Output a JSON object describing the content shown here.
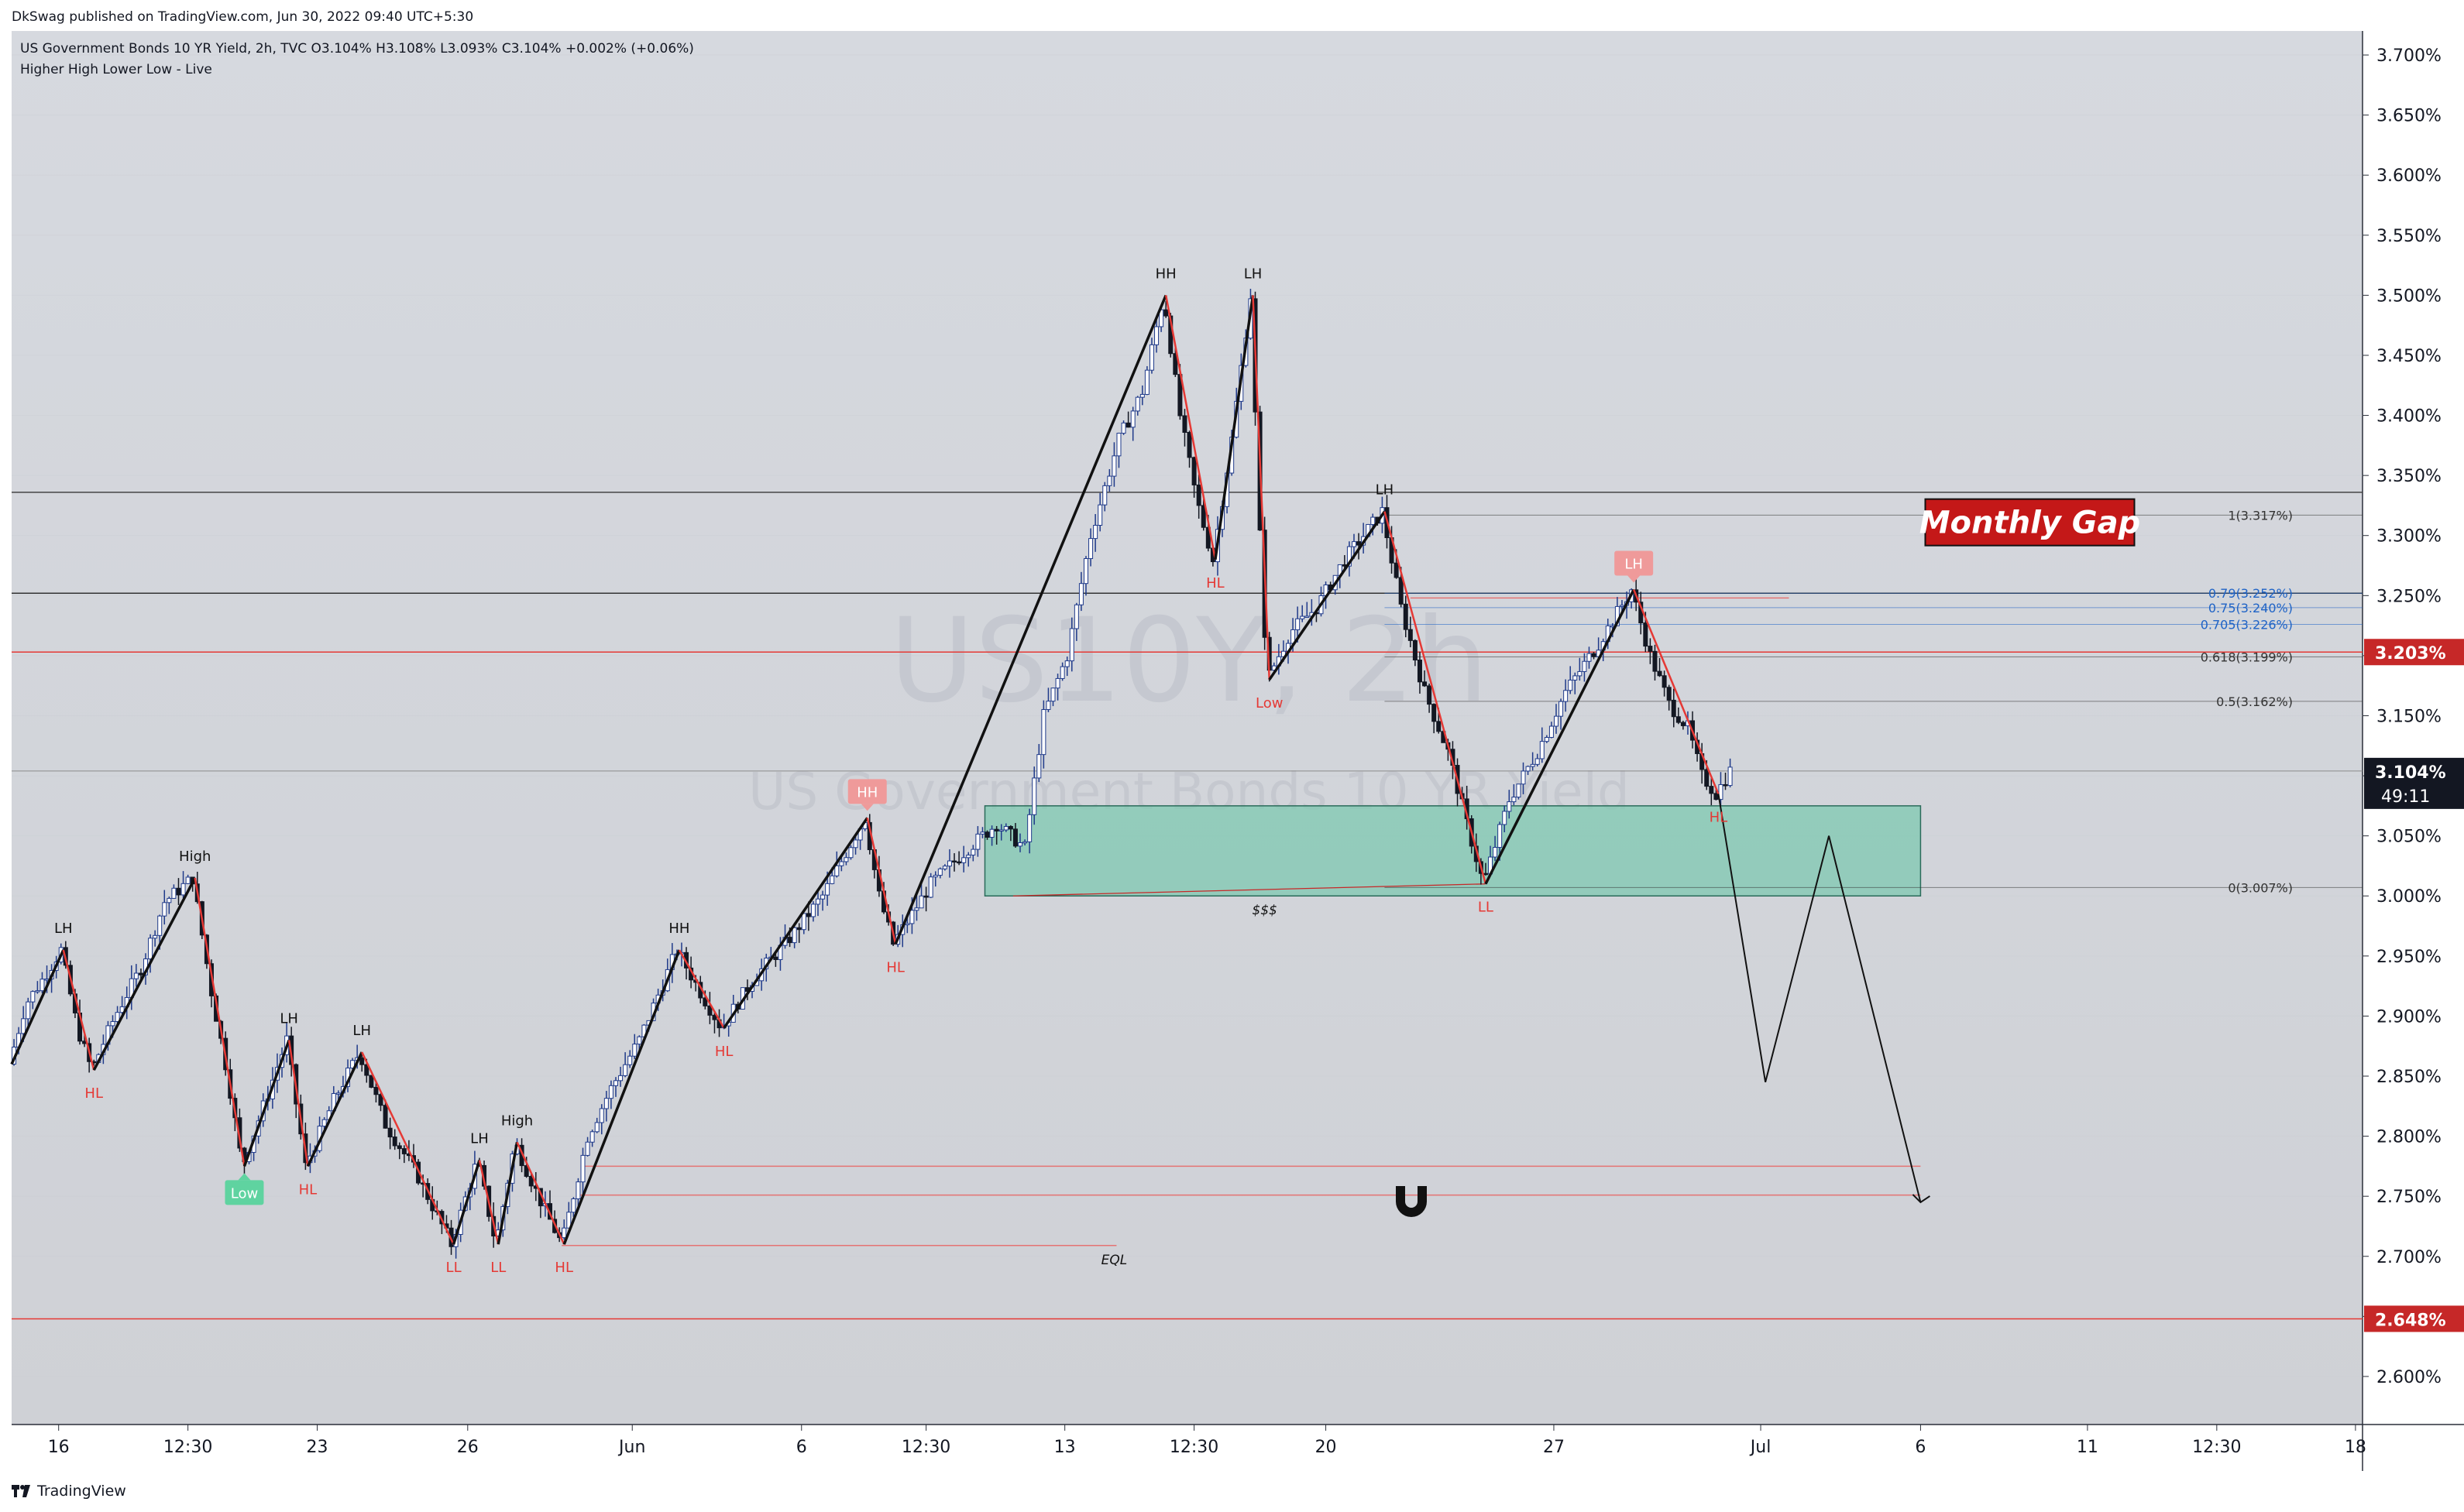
{
  "header": {
    "publisher": "DkSwag published on TradingView.com, Jun 30, 2022 09:40 UTC+5:30",
    "symbol_line": "US Government Bonds 10 YR Yield, 2h, TVC  O3.104%  H3.108%  L3.093%  C3.104%  +0.002% (+0.06%)",
    "indicator": "Higher High Lower Low - Live"
  },
  "watermark": {
    "symbol": "US10Y, 2h",
    "name": "US Government Bonds 10 YR Yield"
  },
  "footer": {
    "brand": "TradingView"
  },
  "chart_data": {
    "type": "candlestick",
    "title": "US Government Bonds 10 YR Yield, 2h, TVC",
    "ylim": [
      2.56,
      3.72
    ],
    "price_format": "%",
    "y_ticks": [
      2.6,
      2.65,
      2.7,
      2.75,
      2.8,
      2.85,
      2.9,
      2.95,
      3.0,
      3.05,
      3.1,
      3.15,
      3.2,
      3.25,
      3.3,
      3.35,
      3.4,
      3.45,
      3.5,
      3.55,
      3.6,
      3.65,
      3.7
    ],
    "y_tick_labels": [
      "2.600%",
      "2.650%",
      "2.700%",
      "2.750%",
      "2.800%",
      "2.850%",
      "2.900%",
      "2.950%",
      "3.000%",
      "3.050%",
      "3.100%",
      "3.150%",
      "3.200%",
      "3.250%",
      "3.300%",
      "3.350%",
      "3.400%",
      "3.450%",
      "3.500%",
      "3.550%",
      "3.600%",
      "3.650%",
      "3.700%"
    ],
    "x_range": [
      0,
      100
    ],
    "x_ticks": [
      {
        "x": 2,
        "label": "16"
      },
      {
        "x": 7.5,
        "label": "12:30"
      },
      {
        "x": 13,
        "label": "23"
      },
      {
        "x": 19.4,
        "label": "26"
      },
      {
        "x": 26.4,
        "label": "Jun"
      },
      {
        "x": 33.6,
        "label": "6"
      },
      {
        "x": 38.9,
        "label": "12:30"
      },
      {
        "x": 44.8,
        "label": "13"
      },
      {
        "x": 50.3,
        "label": "12:30"
      },
      {
        "x": 55.9,
        "label": "20"
      },
      {
        "x": 65.6,
        "label": "27"
      },
      {
        "x": 74.4,
        "label": "Jul"
      },
      {
        "x": 81.2,
        "label": "6"
      },
      {
        "x": 88.3,
        "label": "11"
      },
      {
        "x": 93.8,
        "label": "12:30"
      },
      {
        "x": 99.7,
        "label": "18"
      }
    ],
    "last_price": {
      "value": 3.104,
      "label": "3.104%",
      "countdown": "49:11"
    },
    "price_badges": [
      {
        "value": 3.203,
        "label": "3.203%"
      },
      {
        "value": 2.648,
        "label": "2.648%"
      }
    ],
    "zigzag": [
      {
        "x": 0,
        "y": 2.86
      },
      {
        "x": 2.2,
        "y": 2.955
      },
      {
        "x": 3.5,
        "y": 2.855
      },
      {
        "x": 7.8,
        "y": 3.015
      },
      {
        "x": 9.9,
        "y": 2.775
      },
      {
        "x": 11.8,
        "y": 2.88
      },
      {
        "x": 12.6,
        "y": 2.775
      },
      {
        "x": 14.9,
        "y": 2.87
      },
      {
        "x": 18.8,
        "y": 2.71
      },
      {
        "x": 19.9,
        "y": 2.78
      },
      {
        "x": 20.7,
        "y": 2.71
      },
      {
        "x": 21.5,
        "y": 2.795
      },
      {
        "x": 23.5,
        "y": 2.71
      },
      {
        "x": 28.4,
        "y": 2.955
      },
      {
        "x": 30.3,
        "y": 2.89
      },
      {
        "x": 36.4,
        "y": 3.065
      },
      {
        "x": 37.6,
        "y": 2.96
      },
      {
        "x": 49.1,
        "y": 3.5
      },
      {
        "x": 51.2,
        "y": 3.28
      },
      {
        "x": 52.8,
        "y": 3.5
      },
      {
        "x": 53.5,
        "y": 3.18
      },
      {
        "x": 58.4,
        "y": 3.32
      },
      {
        "x": 62.7,
        "y": 3.01
      },
      {
        "x": 69.0,
        "y": 3.255
      },
      {
        "x": 72.6,
        "y": 3.085
      }
    ],
    "projection": [
      {
        "x": 72.6,
        "y": 3.085
      },
      {
        "x": 74.6,
        "y": 2.845
      },
      {
        "x": 77.3,
        "y": 3.05
      },
      {
        "x": 81.2,
        "y": 2.745
      }
    ],
    "swing_labels": [
      {
        "x": 2.2,
        "y": 2.955,
        "text": "LH",
        "pos": "above",
        "color": "#111111"
      },
      {
        "x": 3.5,
        "y": 2.855,
        "text": "HL",
        "pos": "below",
        "color": "#e53935"
      },
      {
        "x": 7.8,
        "y": 3.015,
        "text": "High",
        "pos": "above",
        "color": "#111111"
      },
      {
        "x": 11.8,
        "y": 2.88,
        "text": "LH",
        "pos": "above",
        "color": "#111111"
      },
      {
        "x": 12.6,
        "y": 2.775,
        "text": "HL",
        "pos": "below",
        "color": "#e53935"
      },
      {
        "x": 14.9,
        "y": 2.87,
        "text": "LH",
        "pos": "above",
        "color": "#111111"
      },
      {
        "x": 18.8,
        "y": 2.71,
        "text": "LL",
        "pos": "below",
        "color": "#e53935"
      },
      {
        "x": 19.9,
        "y": 2.78,
        "text": "LH",
        "pos": "above",
        "color": "#111111"
      },
      {
        "x": 20.7,
        "y": 2.71,
        "text": "LL",
        "pos": "below",
        "color": "#e53935"
      },
      {
        "x": 21.5,
        "y": 2.795,
        "text": "High",
        "pos": "above",
        "color": "#111111"
      },
      {
        "x": 23.5,
        "y": 2.71,
        "text": "HL",
        "pos": "below",
        "color": "#e53935"
      },
      {
        "x": 28.4,
        "y": 2.955,
        "text": "HH",
        "pos": "above",
        "color": "#111111"
      },
      {
        "x": 30.3,
        "y": 2.89,
        "text": "HL",
        "pos": "below",
        "color": "#e53935"
      },
      {
        "x": 37.6,
        "y": 2.96,
        "text": "HL",
        "pos": "below",
        "color": "#e53935"
      },
      {
        "x": 49.1,
        "y": 3.5,
        "text": "HH",
        "pos": "above",
        "color": "#111111"
      },
      {
        "x": 52.8,
        "y": 3.5,
        "text": "LH",
        "pos": "above",
        "color": "#111111"
      },
      {
        "x": 51.2,
        "y": 3.28,
        "text": "HL",
        "pos": "below",
        "color": "#e53935"
      },
      {
        "x": 53.5,
        "y": 3.18,
        "text": "Low",
        "pos": "below",
        "color": "#e53935"
      },
      {
        "x": 58.4,
        "y": 3.32,
        "text": "LH",
        "pos": "above",
        "color": "#111111"
      },
      {
        "x": 62.7,
        "y": 3.01,
        "text": "LL",
        "pos": "below",
        "color": "#e53935"
      },
      {
        "x": 72.6,
        "y": 3.085,
        "text": "HL",
        "pos": "below",
        "color": "#e53935"
      }
    ],
    "badges": [
      {
        "x": 36.4,
        "y": 3.065,
        "text": "HH",
        "bg": "#ef9a9a",
        "fg": "#ffffff",
        "pos": "above"
      },
      {
        "x": 69.0,
        "y": 3.255,
        "text": "LH",
        "bg": "#ef9a9a",
        "fg": "#ffffff",
        "pos": "above"
      },
      {
        "x": 9.9,
        "y": 2.775,
        "text": "Low",
        "bg": "#5fd3a0",
        "fg": "#ffffff",
        "pos": "below"
      }
    ],
    "horizontal_lines": [
      {
        "y": 3.336,
        "x1": 0,
        "x2": 100,
        "color": "#444444",
        "width": 1.5
      },
      {
        "y": 3.252,
        "x1": 0,
        "x2": 100,
        "color": "#333333",
        "width": 1.5
      },
      {
        "y": 3.203,
        "x1": 0,
        "x2": 100,
        "color": "#e53935",
        "width": 1.5
      },
      {
        "y": 3.104,
        "x1": 0,
        "x2": 100,
        "color": "#8a8a8a",
        "width": 1
      },
      {
        "y": 2.648,
        "x1": 0,
        "x2": 100,
        "color": "#e53935",
        "width": 1.5
      },
      {
        "y": 2.775,
        "x1": 24.2,
        "x2": 81.2,
        "color": "#e57373",
        "width": 1.5
      },
      {
        "y": 2.751,
        "x1": 24.2,
        "x2": 81.2,
        "color": "#e57373",
        "width": 1.5
      },
      {
        "y": 2.709,
        "x1": 23.4,
        "x2": 47.0,
        "color": "#e57373",
        "width": 1.5
      },
      {
        "y": 3.248,
        "x1": 59.5,
        "x2": 75.6,
        "color": "#e57373",
        "width": 1.5
      }
    ],
    "demand_zone": {
      "x1": 41.4,
      "x2": 81.2,
      "y1": 3.0,
      "y2": 3.075,
      "fill": "#7ec8b0",
      "stroke": "#2b6b5a"
    },
    "equal_level_labels": [
      {
        "x": 53.3,
        "y": 3.0,
        "text": "$$$"
      },
      {
        "x": 46.9,
        "y": 2.709,
        "text": "EQL"
      }
    ],
    "fib": {
      "x1": 58.4,
      "x2": 100,
      "levels": [
        {
          "ratio": "1",
          "value": 3.317,
          "label": "1(3.317%)",
          "color": "#333333"
        },
        {
          "ratio": "0.79",
          "value": 3.252,
          "label": "0.79(3.252%)",
          "color": "#1e63c6"
        },
        {
          "ratio": "0.75",
          "value": 3.24,
          "label": "0.75(3.240%)",
          "color": "#1e63c6"
        },
        {
          "ratio": "0.705",
          "value": 3.226,
          "label": "0.705(3.226%)",
          "color": "#1e63c6"
        },
        {
          "ratio": "0.618",
          "value": 3.199,
          "label": "0.618(3.199%)",
          "color": "#333333"
        },
        {
          "ratio": "0.5",
          "value": 3.162,
          "label": "0.5(3.162%)",
          "color": "#333333"
        },
        {
          "ratio": "0",
          "value": 3.007,
          "label": "0(3.007%)",
          "color": "#333333"
        }
      ]
    },
    "annotations": [
      {
        "x": 81.4,
        "y": 3.311,
        "text": "Monthly Gap",
        "bg": "#c41818",
        "fg": "#ffffff"
      }
    ],
    "series": [
      {
        "name": "US10Y 2h",
        "path": [
          {
            "x": 0,
            "y": 2.86
          },
          {
            "x": 0.7,
            "y": 2.91
          },
          {
            "x": 1.4,
            "y": 2.93
          },
          {
            "x": 2.2,
            "y": 2.955
          },
          {
            "x": 2.9,
            "y": 2.89
          },
          {
            "x": 3.5,
            "y": 2.855
          },
          {
            "x": 4.5,
            "y": 2.9
          },
          {
            "x": 5.6,
            "y": 2.94
          },
          {
            "x": 6.6,
            "y": 2.995
          },
          {
            "x": 7.8,
            "y": 3.015
          },
          {
            "x": 8.6,
            "y": 2.92
          },
          {
            "x": 9.3,
            "y": 2.85
          },
          {
            "x": 9.9,
            "y": 2.775
          },
          {
            "x": 10.9,
            "y": 2.83
          },
          {
            "x": 11.8,
            "y": 2.88
          },
          {
            "x": 12.6,
            "y": 2.775
          },
          {
            "x": 13.8,
            "y": 2.83
          },
          {
            "x": 14.9,
            "y": 2.87
          },
          {
            "x": 16.0,
            "y": 2.81
          },
          {
            "x": 17.3,
            "y": 2.77
          },
          {
            "x": 18.8,
            "y": 2.71
          },
          {
            "x": 19.9,
            "y": 2.78
          },
          {
            "x": 20.7,
            "y": 2.71
          },
          {
            "x": 21.5,
            "y": 2.795
          },
          {
            "x": 22.5,
            "y": 2.75
          },
          {
            "x": 23.5,
            "y": 2.71
          },
          {
            "x": 24.6,
            "y": 2.8
          },
          {
            "x": 25.6,
            "y": 2.84
          },
          {
            "x": 26.8,
            "y": 2.88
          },
          {
            "x": 28.4,
            "y": 2.955
          },
          {
            "x": 29.4,
            "y": 2.92
          },
          {
            "x": 30.3,
            "y": 2.89
          },
          {
            "x": 31.6,
            "y": 2.93
          },
          {
            "x": 33.0,
            "y": 2.96
          },
          {
            "x": 34.6,
            "y": 3.0
          },
          {
            "x": 36.4,
            "y": 3.065
          },
          {
            "x": 37.0,
            "y": 3.0
          },
          {
            "x": 37.6,
            "y": 2.96
          },
          {
            "x": 39.2,
            "y": 3.01
          },
          {
            "x": 40.8,
            "y": 3.04
          },
          {
            "x": 42.0,
            "y": 3.06
          },
          {
            "x": 43.2,
            "y": 3.04
          },
          {
            "x": 44.0,
            "y": 3.15
          },
          {
            "x": 45.0,
            "y": 3.2
          },
          {
            "x": 46.0,
            "y": 3.3
          },
          {
            "x": 47.2,
            "y": 3.38
          },
          {
            "x": 48.2,
            "y": 3.42
          },
          {
            "x": 49.1,
            "y": 3.5
          },
          {
            "x": 49.8,
            "y": 3.4
          },
          {
            "x": 50.5,
            "y": 3.33
          },
          {
            "x": 51.2,
            "y": 3.28
          },
          {
            "x": 52.0,
            "y": 3.38
          },
          {
            "x": 52.8,
            "y": 3.5
          },
          {
            "x": 53.2,
            "y": 3.3
          },
          {
            "x": 53.5,
            "y": 3.18
          },
          {
            "x": 54.5,
            "y": 3.22
          },
          {
            "x": 55.6,
            "y": 3.24
          },
          {
            "x": 56.8,
            "y": 3.28
          },
          {
            "x": 58.4,
            "y": 3.32
          },
          {
            "x": 59.2,
            "y": 3.24
          },
          {
            "x": 60.2,
            "y": 3.17
          },
          {
            "x": 61.2,
            "y": 3.12
          },
          {
            "x": 62.0,
            "y": 3.06
          },
          {
            "x": 62.7,
            "y": 3.01
          },
          {
            "x": 63.8,
            "y": 3.08
          },
          {
            "x": 65.0,
            "y": 3.12
          },
          {
            "x": 66.2,
            "y": 3.17
          },
          {
            "x": 67.6,
            "y": 3.21
          },
          {
            "x": 69.0,
            "y": 3.255
          },
          {
            "x": 69.8,
            "y": 3.2
          },
          {
            "x": 70.6,
            "y": 3.16
          },
          {
            "x": 71.4,
            "y": 3.14
          },
          {
            "x": 72.0,
            "y": 3.1
          },
          {
            "x": 72.6,
            "y": 3.085
          },
          {
            "x": 73.2,
            "y": 3.104
          }
        ]
      }
    ]
  }
}
